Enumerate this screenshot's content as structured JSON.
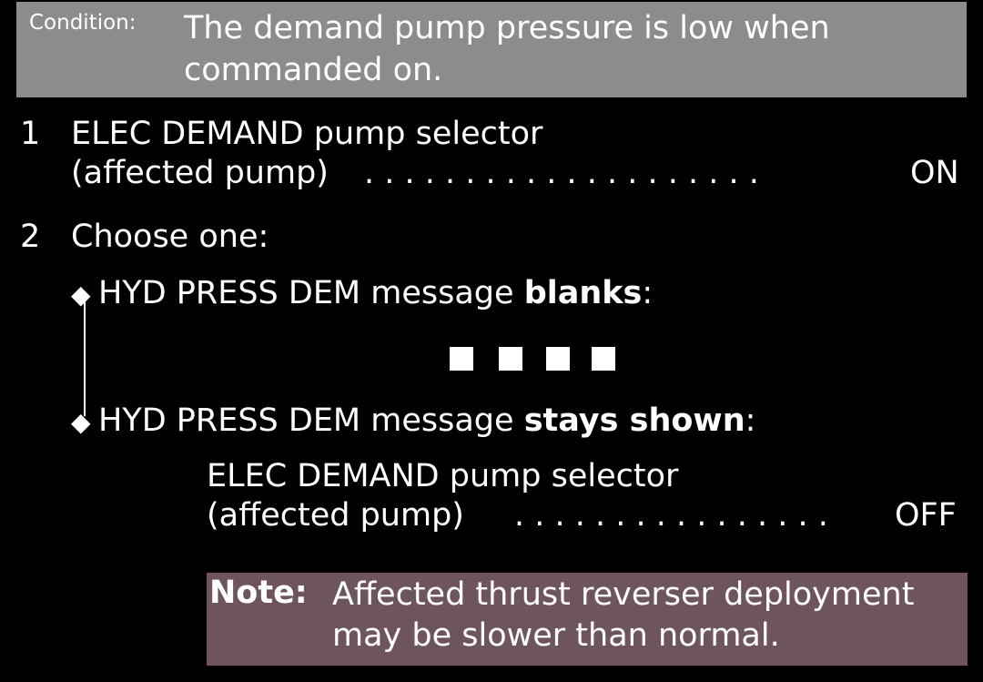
{
  "condition": {
    "label": "Condition:",
    "text": "The demand pump pressure is low when commanded on."
  },
  "step1": {
    "number": "1",
    "line1": "ELEC DEMAND pump selector",
    "line2": "(affected pump)",
    "dots": ". . . . . . . . . . . . . . . . . . . .",
    "value": "ON"
  },
  "step2": {
    "number": "2",
    "text": "Choose one:"
  },
  "option1": {
    "bullet": "◆",
    "text": "HYD PRESS DEM message ",
    "emphasis": "blanks",
    "suffix": ":"
  },
  "end_marker": "■ ■ ■ ■",
  "option2": {
    "bullet": "◆",
    "text": "HYD PRESS DEM message ",
    "emphasis": "stays shown",
    "suffix": ":",
    "action_line1": "ELEC DEMAND pump selector",
    "action_line2": "(affected pump)",
    "action_dots": ". . . . . . . . . . . . . . . .",
    "action_value": "OFF"
  },
  "note": {
    "label": "Note:",
    "text": "Affected thrust reverser deployment may be slower than normal."
  }
}
